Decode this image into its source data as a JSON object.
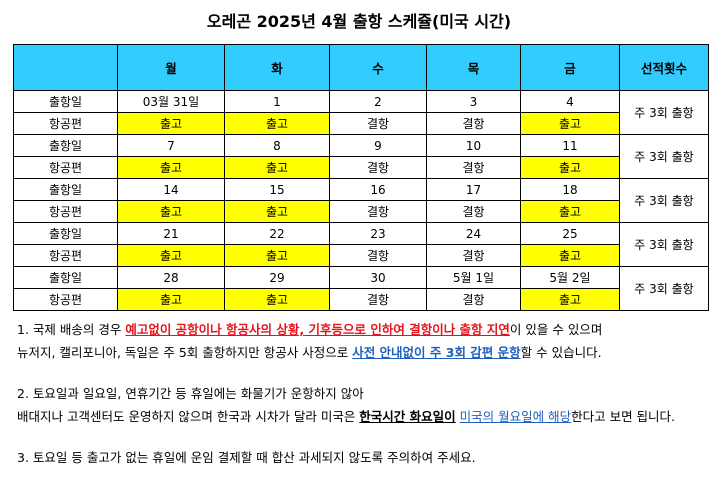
{
  "title": "오레곤 2025년 4월 출항 스케쥴(미국 시간)",
  "headers": [
    "",
    "월",
    "화",
    "수",
    "목",
    "금",
    "선적횟수"
  ],
  "row_labels": {
    "date": "출항일",
    "flight": "항공편"
  },
  "highlight_color": "#ffff00",
  "header_color": "#33ccff",
  "weeks": [
    {
      "dates": [
        "03월 31일",
        "1",
        "2",
        "3",
        "4"
      ],
      "flights": [
        "출고",
        "출고",
        "결항",
        "결항",
        "출고"
      ],
      "count": "주 3회 출항"
    },
    {
      "dates": [
        "7",
        "8",
        "9",
        "10",
        "11"
      ],
      "flights": [
        "출고",
        "출고",
        "결항",
        "결항",
        "출고"
      ],
      "count": "주 3회 출항"
    },
    {
      "dates": [
        "14",
        "15",
        "16",
        "17",
        "18"
      ],
      "flights": [
        "출고",
        "출고",
        "결항",
        "결항",
        "출고"
      ],
      "count": "주 3회 출항"
    },
    {
      "dates": [
        "21",
        "22",
        "23",
        "24",
        "25"
      ],
      "flights": [
        "출고",
        "출고",
        "결항",
        "결항",
        "출고"
      ],
      "count": "주 3회 출항"
    },
    {
      "dates": [
        "28",
        "29",
        "30",
        "5월 1일",
        "5월 2일"
      ],
      "flights": [
        "출고",
        "출고",
        "결항",
        "결항",
        "출고"
      ],
      "count": "주 3회 출항"
    }
  ],
  "notes": {
    "n1_a": "1. 국제 배송의 경우 ",
    "n1_red": "예고없이 공항이나 항공사의 상황, 기후등으로 인하여 결항이나 출항 지연",
    "n1_b": "이 있을 수 있으며",
    "n1_c": "뉴저지, 캘리포니아, 독일은 주 5회 출항하지만 항공사 사정으로 ",
    "n1_blue": "사전 안내없이 주 3회 감편 운항",
    "n1_d": "할 수 있습니다.",
    "n2_a": "2. 토요일과 일요일, 연휴기간 등 휴일에는 화물기가 운항하지 않아",
    "n2_b": "배대지나 고객센터도 운영하지 않으며 한국과 시차가 달라 미국은 ",
    "n2_bold": "한국시간 화요일이",
    "n2_space": " ",
    "n2_blue": "미국의 월요일에 해당",
    "n2_c": "한다고 보면 됩니다.",
    "n3": "3. 토요일 등 출고가 없는 휴일에 운임 결제할 때 합산 과세되지 않도록 주의하여 주세요."
  }
}
